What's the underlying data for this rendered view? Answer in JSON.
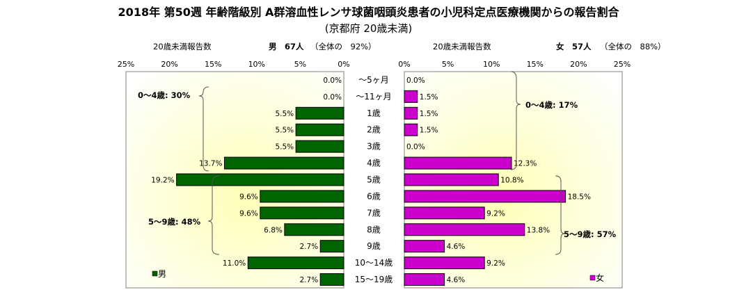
{
  "chart_data": {
    "type": "bar",
    "title": "2018年 第50週 年齢階級別 A群溶血性レンサ球菌咽頭炎患者の小児科定点医療機関からの報告割合",
    "subtitle": "(京都府 20歳未満)",
    "categories": [
      "～5ヶ月",
      "～11ヶ月",
      "1歳",
      "2歳",
      "3歳",
      "4歳",
      "5歳",
      "6歳",
      "7歳",
      "8歳",
      "9歳",
      "10～14歳",
      "15～19歳"
    ],
    "xlim": [
      0,
      25
    ],
    "tick_labels": [
      "0%",
      "5%",
      "10%",
      "15%",
      "20%",
      "25%"
    ],
    "series": [
      {
        "name": "男",
        "color": "#006400",
        "values": [
          0.0,
          0.0,
          5.5,
          5.5,
          5.5,
          13.7,
          19.2,
          9.6,
          9.6,
          6.8,
          2.7,
          11.0,
          2.7
        ],
        "labels": [
          "0.0%",
          "0.0%",
          "5.5%",
          "5.5%",
          "5.5%",
          "13.7%",
          "19.2%",
          "9.6%",
          "9.6%",
          "6.8%",
          "2.7%",
          "11.0%",
          "2.7%"
        ],
        "header": {
          "label": "20歳未満報告数",
          "count": "男　67人",
          "share": "（全体の　92%）"
        },
        "groups": [
          {
            "label": "0～4歳: 30%"
          },
          {
            "label": "5～9歳: 48%"
          }
        ]
      },
      {
        "name": "女",
        "color": "#CC00CC",
        "values": [
          0.0,
          1.5,
          1.5,
          1.5,
          0.0,
          12.3,
          10.8,
          18.5,
          9.2,
          13.8,
          4.6,
          9.2,
          4.6
        ],
        "labels": [
          "0.0%",
          "1.5%",
          "1.5%",
          "1.5%",
          "0.0%",
          "12.3%",
          "10.8%",
          "18.5%",
          "9.2%",
          "13.8%",
          "4.6%",
          "9.2%",
          "4.6%"
        ],
        "header": {
          "label": "20歳未満報告数",
          "count": "女　57人",
          "share": "（全体の　88%）"
        },
        "groups": [
          {
            "label": "0～4歳: 17%"
          },
          {
            "label": "5～9歳: 57%"
          }
        ]
      }
    ],
    "grid": false,
    "legend": "bottom-corners"
  }
}
